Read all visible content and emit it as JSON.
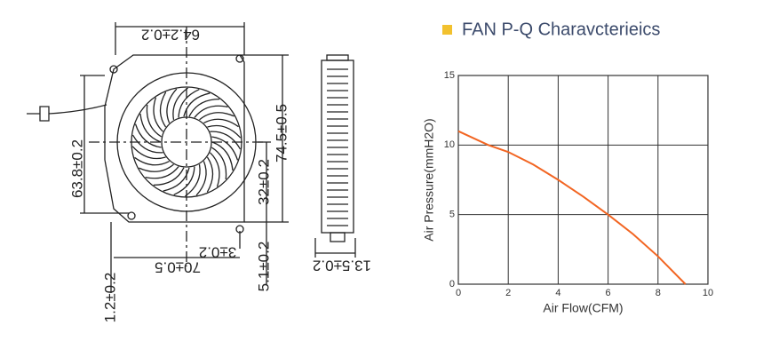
{
  "drawing": {
    "dimensions": [
      "64.2±0.2",
      "74.5±0.5",
      "63.8±0.2",
      "32±0.2",
      "3±0.2",
      "70±0.5",
      "5.1±0.2",
      "13.5±0.2",
      "1.2±0.2"
    ]
  },
  "chart_data": {
    "type": "line",
    "title": "FAN P-Q  Charavcterieics",
    "x_label": "Air Flow(CFM)",
    "y_label": "Air Pressure(mmH2O)",
    "x": [
      0,
      1.2,
      2,
      3,
      4,
      5,
      6,
      7,
      8,
      9.1
    ],
    "series": [
      {
        "name": "P-Q",
        "color": "#f26522",
        "values": [
          11,
          10,
          9.5,
          8.6,
          7.5,
          6.3,
          5,
          3.6,
          2,
          0
        ]
      }
    ],
    "xlim": [
      0,
      10
    ],
    "xticks": [
      0,
      2,
      4,
      6,
      8,
      10
    ],
    "ylim": [
      0,
      15
    ],
    "yticks": [
      0,
      5,
      10,
      15
    ],
    "grid": true
  }
}
